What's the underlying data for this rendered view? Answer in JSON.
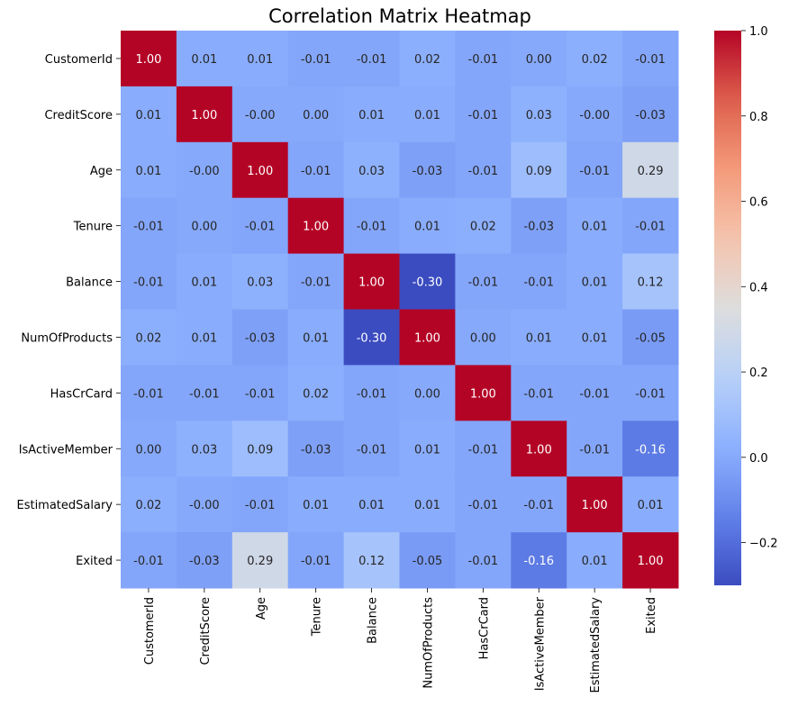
{
  "chart_data": {
    "type": "heatmap",
    "title": "Correlation Matrix Heatmap",
    "variables": [
      "CustomerId",
      "CreditScore",
      "Age",
      "Tenure",
      "Balance",
      "NumOfProducts",
      "HasCrCard",
      "IsActiveMember",
      "EstimatedSalary",
      "Exited"
    ],
    "matrix": [
      [
        1.0,
        0.01,
        0.01,
        -0.01,
        -0.01,
        0.02,
        -0.01,
        0.0,
        0.02,
        -0.01
      ],
      [
        0.01,
        1.0,
        -0.0,
        0.0,
        0.01,
        0.01,
        -0.01,
        0.03,
        -0.0,
        -0.03
      ],
      [
        0.01,
        -0.0,
        1.0,
        -0.01,
        0.03,
        -0.03,
        -0.01,
        0.09,
        -0.01,
        0.29
      ],
      [
        -0.01,
        0.0,
        -0.01,
        1.0,
        -0.01,
        0.01,
        0.02,
        -0.03,
        0.01,
        -0.01
      ],
      [
        -0.01,
        0.01,
        0.03,
        -0.01,
        1.0,
        -0.3,
        -0.01,
        -0.01,
        0.01,
        0.12
      ],
      [
        0.02,
        0.01,
        -0.03,
        0.01,
        -0.3,
        1.0,
        0.0,
        0.01,
        0.01,
        -0.05
      ],
      [
        -0.01,
        -0.01,
        -0.01,
        0.02,
        -0.01,
        0.0,
        1.0,
        -0.01,
        -0.01,
        -0.01
      ],
      [
        0.0,
        0.03,
        0.09,
        -0.03,
        -0.01,
        0.01,
        -0.01,
        1.0,
        -0.01,
        -0.16
      ],
      [
        0.02,
        -0.0,
        -0.01,
        0.01,
        0.01,
        0.01,
        -0.01,
        -0.01,
        1.0,
        0.01
      ],
      [
        -0.01,
        -0.03,
        0.29,
        -0.01,
        0.12,
        -0.05,
        -0.01,
        -0.16,
        0.01,
        1.0
      ]
    ],
    "cell_labels": [
      [
        "1.00",
        "0.01",
        "0.01",
        "-0.01",
        "-0.01",
        "0.02",
        "-0.01",
        "0.00",
        "0.02",
        "-0.01"
      ],
      [
        "0.01",
        "1.00",
        "-0.00",
        "0.00",
        "0.01",
        "0.01",
        "-0.01",
        "0.03",
        "-0.00",
        "-0.03"
      ],
      [
        "0.01",
        "-0.00",
        "1.00",
        "-0.01",
        "0.03",
        "-0.03",
        "-0.01",
        "0.09",
        "-0.01",
        "0.29"
      ],
      [
        "-0.01",
        "0.00",
        "-0.01",
        "1.00",
        "-0.01",
        "0.01",
        "0.02",
        "-0.03",
        "0.01",
        "-0.01"
      ],
      [
        "-0.01",
        "0.01",
        "0.03",
        "-0.01",
        "1.00",
        "-0.30",
        "-0.01",
        "-0.01",
        "0.01",
        "0.12"
      ],
      [
        "0.02",
        "0.01",
        "-0.03",
        "0.01",
        "-0.30",
        "1.00",
        "0.00",
        "0.01",
        "0.01",
        "-0.05"
      ],
      [
        "-0.01",
        "-0.01",
        "-0.01",
        "0.02",
        "-0.01",
        "0.00",
        "1.00",
        "-0.01",
        "-0.01",
        "-0.01"
      ],
      [
        "0.00",
        "0.03",
        "0.09",
        "-0.03",
        "-0.01",
        "0.01",
        "-0.01",
        "1.00",
        "-0.01",
        "-0.16"
      ],
      [
        "0.02",
        "-0.00",
        "-0.01",
        "0.01",
        "0.01",
        "0.01",
        "-0.01",
        "-0.01",
        "1.00",
        "0.01"
      ],
      [
        "-0.01",
        "-0.03",
        "0.29",
        "-0.01",
        "0.12",
        "-0.05",
        "-0.01",
        "-0.16",
        "0.01",
        "1.00"
      ]
    ],
    "colormap": "coolwarm",
    "colorbar": {
      "vmin": -0.3,
      "vmax": 1.0,
      "ticks": [
        -0.2,
        0.0,
        0.2,
        0.4,
        0.6,
        0.8,
        1.0
      ],
      "tick_labels": [
        "−0.2",
        "0.0",
        "0.2",
        "0.4",
        "0.6",
        "0.8",
        "1.0"
      ]
    },
    "grid": false,
    "legend": "colorbar-right"
  }
}
